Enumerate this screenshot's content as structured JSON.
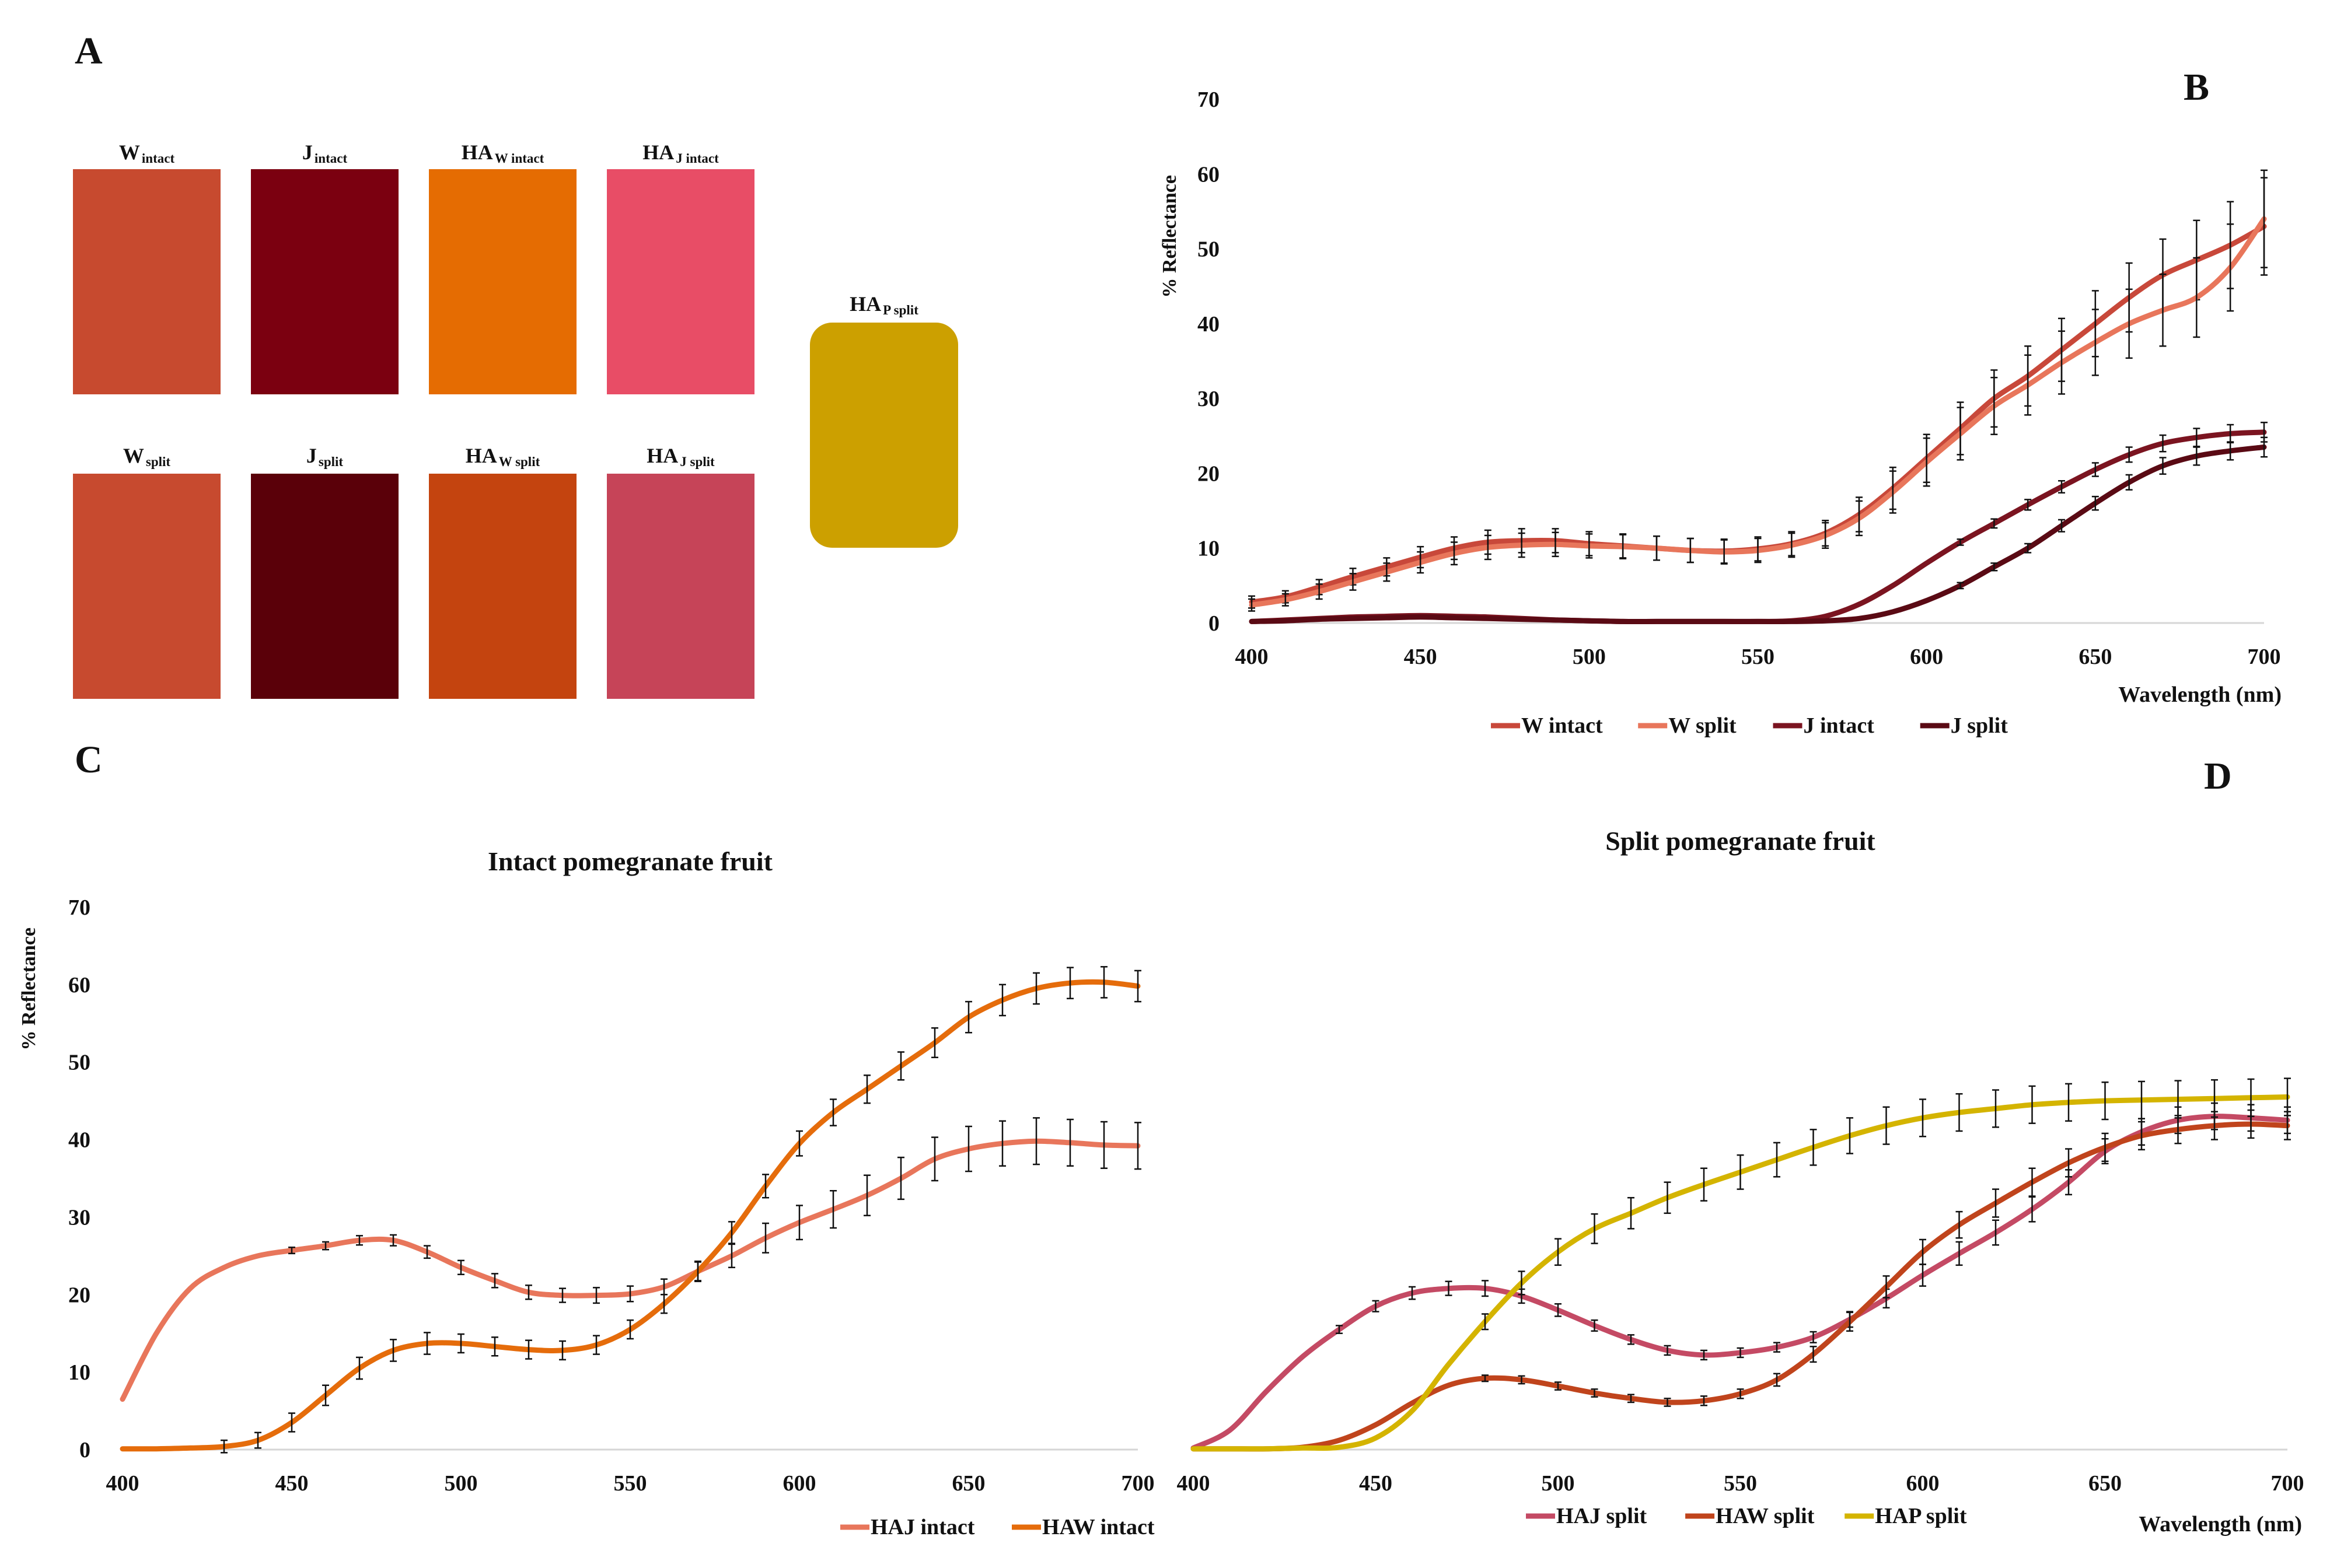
{
  "panel_labels": {
    "a": "A",
    "b": "B",
    "c": "C",
    "d": "D"
  },
  "swatches": [
    {
      "base": "W",
      "sub": "intact",
      "color": "#c74a2f"
    },
    {
      "base": "J",
      "sub": "intact",
      "color": "#7b0010"
    },
    {
      "base": "HA",
      "sub": "W intact",
      "color": "#e56c02"
    },
    {
      "base": "HA",
      "sub": "J intact",
      "color": "#e84d66"
    },
    {
      "base": "W",
      "sub": "split",
      "color": "#c74a2f"
    },
    {
      "base": "J",
      "sub": "split",
      "color": "#5a0009"
    },
    {
      "base": "HA",
      "sub": "W split",
      "color": "#c4440f"
    },
    {
      "base": "HA",
      "sub": "J split",
      "color": "#c64458"
    },
    {
      "base": "HA",
      "sub": "P split",
      "color": "#cca000"
    }
  ],
  "chart_data": [
    {
      "id": "B",
      "type": "line",
      "title": "",
      "xlabel": "Wavelength (nm)",
      "ylabel": "% Reflectance",
      "xlim": [
        400,
        700
      ],
      "ylim": [
        0,
        70
      ],
      "xticks": [
        400,
        450,
        500,
        550,
        600,
        650,
        700
      ],
      "yticks": [
        0,
        10,
        20,
        30,
        40,
        50,
        60,
        70
      ],
      "grid": false,
      "legend": "bottom",
      "x": [
        400,
        410,
        420,
        430,
        440,
        450,
        460,
        470,
        480,
        490,
        500,
        510,
        520,
        530,
        540,
        550,
        560,
        570,
        580,
        590,
        600,
        610,
        620,
        630,
        640,
        650,
        660,
        670,
        680,
        690,
        700
      ],
      "series": [
        {
          "name": "W intact",
          "color": "#c8483a",
          "error_bars": true,
          "values": [
            2.8,
            3.5,
            4.8,
            6.2,
            7.5,
            8.8,
            10.0,
            10.8,
            11.0,
            11.0,
            10.6,
            10.3,
            10.0,
            9.7,
            9.6,
            9.9,
            10.6,
            12.0,
            14.5,
            18.0,
            22.0,
            26.0,
            30.0,
            33.0,
            36.5,
            40.0,
            43.5,
            46.5,
            48.5,
            50.5,
            53.0
          ],
          "errors": [
            0.8,
            0.8,
            1.0,
            1.1,
            1.2,
            1.4,
            1.5,
            1.6,
            1.6,
            1.6,
            1.6,
            1.6,
            1.6,
            1.6,
            1.6,
            1.6,
            1.6,
            1.7,
            2.3,
            2.8,
            3.2,
            3.5,
            3.8,
            4.0,
            4.2,
            4.4,
            4.6,
            4.8,
            5.3,
            5.8,
            6.5
          ]
        },
        {
          "name": "W split",
          "color": "#e8765b",
          "error_bars": true,
          "values": [
            2.4,
            3.1,
            4.2,
            5.5,
            6.8,
            8.1,
            9.3,
            10.1,
            10.4,
            10.5,
            10.3,
            10.2,
            10.0,
            9.7,
            9.5,
            9.7,
            10.4,
            11.7,
            14.0,
            17.5,
            21.5,
            25.3,
            29.0,
            31.8,
            34.8,
            37.5,
            40.0,
            41.8,
            43.5,
            47.5,
            54.0
          ],
          "errors": [
            0.8,
            0.8,
            1.0,
            1.1,
            1.2,
            1.4,
            1.5,
            1.6,
            1.6,
            1.6,
            1.6,
            1.6,
            1.6,
            1.6,
            1.6,
            1.6,
            1.6,
            1.7,
            2.3,
            2.8,
            3.2,
            3.5,
            3.8,
            4.0,
            4.2,
            4.4,
            4.6,
            4.8,
            5.3,
            5.8,
            6.5
          ]
        },
        {
          "name": "J intact",
          "color": "#7b1420",
          "error_bars": true,
          "values": [
            0.2,
            0.4,
            0.6,
            0.8,
            0.9,
            1.0,
            0.9,
            0.8,
            0.6,
            0.4,
            0.3,
            0.2,
            0.2,
            0.2,
            0.2,
            0.2,
            0.3,
            0.9,
            2.5,
            5.0,
            8.0,
            10.8,
            13.3,
            15.8,
            18.2,
            20.5,
            22.5,
            24.0,
            24.8,
            25.3,
            25.5
          ],
          "errors": [
            0,
            0,
            0,
            0,
            0,
            0,
            0,
            0,
            0,
            0,
            0,
            0,
            0,
            0,
            0,
            0,
            0,
            0,
            0,
            0,
            0,
            0.4,
            0.6,
            0.7,
            0.8,
            0.9,
            1.0,
            1.1,
            1.2,
            1.2,
            1.3
          ]
        },
        {
          "name": "J split",
          "color": "#5a0a14",
          "error_bars": true,
          "values": [
            0.2,
            0.3,
            0.5,
            0.6,
            0.7,
            0.8,
            0.7,
            0.6,
            0.5,
            0.4,
            0.3,
            0.2,
            0.2,
            0.2,
            0.2,
            0.2,
            0.2,
            0.3,
            0.6,
            1.5,
            3.0,
            5.0,
            7.5,
            10.0,
            13.0,
            16.0,
            18.8,
            21.0,
            22.3,
            23.0,
            23.5
          ],
          "errors": [
            0,
            0,
            0,
            0,
            0,
            0,
            0,
            0,
            0,
            0,
            0,
            0,
            0,
            0,
            0,
            0,
            0,
            0,
            0,
            0,
            0,
            0.4,
            0.5,
            0.6,
            0.8,
            0.9,
            1.0,
            1.1,
            1.2,
            1.2,
            1.3
          ]
        }
      ]
    },
    {
      "id": "C",
      "type": "line",
      "title": "Intact pomegranate fruit",
      "xlabel": "",
      "ylabel": "% Reflectance",
      "xlim": [
        400,
        700
      ],
      "ylim": [
        0,
        70
      ],
      "xticks": [
        400,
        450,
        500,
        550,
        600,
        650,
        700
      ],
      "yticks": [
        0,
        10,
        20,
        30,
        40,
        50,
        60,
        70
      ],
      "grid": false,
      "legend": "bottom-right",
      "x": [
        400,
        410,
        420,
        430,
        440,
        450,
        460,
        470,
        480,
        490,
        500,
        510,
        520,
        530,
        540,
        550,
        560,
        570,
        580,
        590,
        600,
        610,
        620,
        630,
        640,
        650,
        660,
        670,
        680,
        690,
        700
      ],
      "series": [
        {
          "name": "HAJ intact",
          "color": "#e8765b",
          "error_bars": true,
          "values": [
            6.5,
            15.0,
            20.8,
            23.5,
            25.0,
            25.7,
            26.3,
            27.0,
            27.0,
            25.5,
            23.5,
            21.8,
            20.3,
            19.9,
            19.9,
            20.1,
            21.0,
            23.0,
            25.0,
            27.3,
            29.3,
            31.0,
            32.8,
            35.0,
            37.5,
            38.8,
            39.5,
            39.8,
            39.6,
            39.3,
            39.2
          ],
          "errors": [
            0,
            0,
            0,
            0,
            0,
            0.4,
            0.5,
            0.6,
            0.7,
            0.8,
            0.9,
            0.9,
            0.9,
            0.9,
            1.0,
            1.0,
            1.0,
            1.2,
            1.5,
            1.9,
            2.2,
            2.4,
            2.6,
            2.7,
            2.8,
            2.9,
            2.9,
            3.0,
            3.0,
            3.0,
            3.0
          ]
        },
        {
          "name": "HAW intact",
          "color": "#e56c0b",
          "error_bars": true,
          "values": [
            0.1,
            0.1,
            0.2,
            0.4,
            1.2,
            3.5,
            7.0,
            10.5,
            12.8,
            13.7,
            13.7,
            13.3,
            12.9,
            12.8,
            13.5,
            15.5,
            18.8,
            23.0,
            28.0,
            34.0,
            39.5,
            43.5,
            46.5,
            49.5,
            52.5,
            55.8,
            58.0,
            59.5,
            60.2,
            60.3,
            59.8
          ],
          "errors": [
            0,
            0,
            0,
            0.8,
            1.0,
            1.2,
            1.3,
            1.4,
            1.4,
            1.4,
            1.2,
            1.2,
            1.2,
            1.2,
            1.2,
            1.2,
            1.2,
            1.3,
            1.4,
            1.5,
            1.6,
            1.7,
            1.8,
            1.8,
            1.9,
            2.0,
            2.0,
            2.0,
            2.0,
            2.0,
            2.0
          ]
        }
      ]
    },
    {
      "id": "D",
      "type": "line",
      "title": "Split pomegranate fruit",
      "xlabel": "Wavelength (nm)",
      "ylabel": "",
      "xlim": [
        400,
        700
      ],
      "ylim": [
        0,
        70
      ],
      "xticks": [
        400,
        450,
        500,
        550,
        600,
        650,
        700
      ],
      "grid": false,
      "legend": "bottom",
      "x": [
        400,
        410,
        420,
        430,
        440,
        450,
        460,
        470,
        480,
        490,
        500,
        510,
        520,
        530,
        540,
        550,
        560,
        570,
        580,
        590,
        600,
        610,
        620,
        630,
        640,
        650,
        660,
        670,
        680,
        690,
        700
      ],
      "series": [
        {
          "name": "HAJ split",
          "color": "#c44a64",
          "error_bars": true,
          "values": [
            0.2,
            2.5,
            7.5,
            12.0,
            15.5,
            18.5,
            20.2,
            20.8,
            20.8,
            19.8,
            18.0,
            16.0,
            14.2,
            12.8,
            12.2,
            12.5,
            13.2,
            14.5,
            16.8,
            19.5,
            22.5,
            25.3,
            28.0,
            31.0,
            34.5,
            38.5,
            41.0,
            42.5,
            43.0,
            42.8,
            42.5
          ],
          "errors": [
            0,
            0,
            0,
            0,
            0.5,
            0.7,
            0.8,
            0.9,
            1.0,
            0.9,
            0.8,
            0.7,
            0.6,
            0.6,
            0.6,
            0.6,
            0.6,
            0.7,
            1.0,
            1.2,
            1.4,
            1.5,
            1.6,
            1.6,
            1.6,
            1.6,
            1.7,
            1.7,
            1.7,
            1.7,
            1.7
          ]
        },
        {
          "name": "HAW split",
          "color": "#c0441c",
          "error_bars": true,
          "values": [
            0.1,
            0.1,
            0.1,
            0.3,
            1.2,
            3.2,
            6.0,
            8.3,
            9.2,
            9.0,
            8.2,
            7.3,
            6.6,
            6.1,
            6.3,
            7.2,
            9.0,
            12.3,
            16.5,
            21.0,
            25.5,
            29.0,
            31.8,
            34.5,
            37.0,
            39.0,
            40.5,
            41.3,
            41.8,
            42.0,
            41.8
          ],
          "errors": [
            0,
            0,
            0,
            0,
            0,
            0,
            0,
            0,
            0.4,
            0.5,
            0.5,
            0.5,
            0.5,
            0.5,
            0.6,
            0.6,
            0.8,
            1.0,
            1.2,
            1.4,
            1.6,
            1.7,
            1.8,
            1.8,
            1.8,
            1.8,
            1.8,
            1.8,
            1.8,
            1.8,
            1.8
          ]
        },
        {
          "name": "HAP split",
          "color": "#d4b400",
          "error_bars": true,
          "values": [
            0.1,
            0.1,
            0.1,
            0.2,
            0.3,
            1.5,
            5.0,
            11.0,
            16.5,
            21.5,
            25.5,
            28.5,
            30.5,
            32.5,
            34.2,
            35.8,
            37.4,
            39.0,
            40.5,
            41.8,
            42.8,
            43.5,
            44.0,
            44.5,
            44.8,
            45.0,
            45.1,
            45.2,
            45.3,
            45.4,
            45.5
          ],
          "errors": [
            0,
            0,
            0,
            0,
            0,
            0,
            0,
            0,
            1.0,
            1.5,
            1.7,
            1.9,
            2.0,
            2.0,
            2.1,
            2.2,
            2.2,
            2.3,
            2.3,
            2.4,
            2.4,
            2.4,
            2.4,
            2.4,
            2.4,
            2.4,
            2.4,
            2.4,
            2.4,
            2.4,
            2.4
          ]
        }
      ]
    }
  ]
}
